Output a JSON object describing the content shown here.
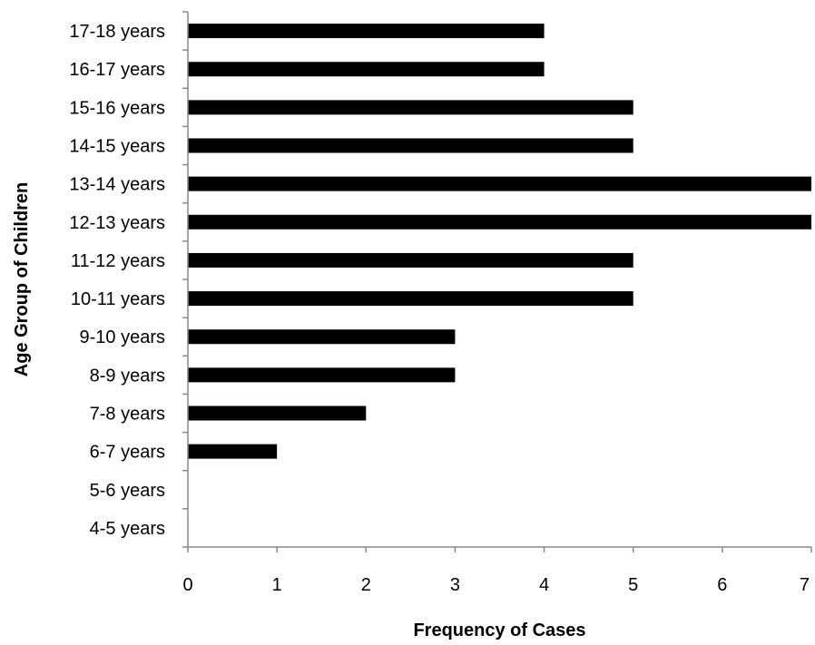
{
  "chart_data": {
    "type": "bar",
    "orientation": "horizontal",
    "title": "",
    "xlabel": "Frequency of Cases",
    "ylabel": "Age Group of Children",
    "categories": [
      "4-5 years",
      "5-6 years",
      "6-7 years",
      "7-8 years",
      "8-9 years",
      "9-10 years",
      "10-11 years",
      "11-12 years",
      "12-13 years",
      "13-14 years",
      "14-15 years",
      "15-16 years",
      "16-17 years",
      "17-18 years"
    ],
    "values": [
      0,
      0,
      1,
      2,
      3,
      3,
      5,
      5,
      7,
      7,
      5,
      5,
      4,
      4
    ],
    "xlim": [
      0,
      7
    ],
    "xticks": [
      "0",
      "1",
      "2",
      "3",
      "4",
      "5",
      "6",
      "7"
    ],
    "grid": false,
    "legend": "none",
    "bar_color": "#000000"
  }
}
